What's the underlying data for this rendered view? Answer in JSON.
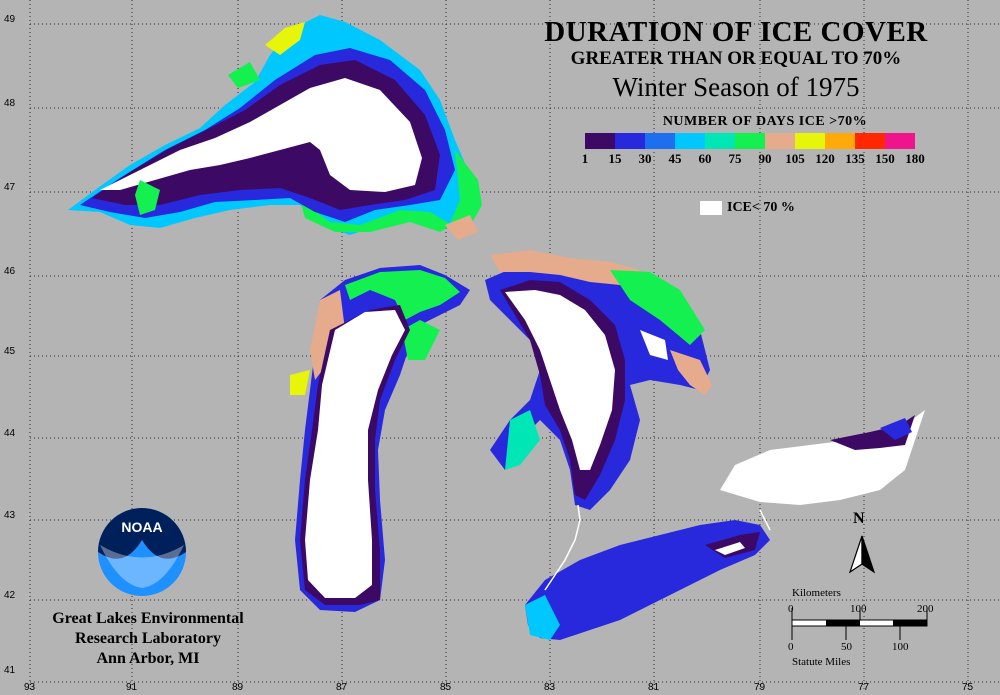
{
  "title": {
    "line1": "DURATION OF ICE COVER",
    "line2": "GREATER THAN OR EQUAL TO 70%",
    "line3": "Winter Season of 1975"
  },
  "legend": {
    "title": "NUMBER OF DAYS ICE >70%",
    "colors": [
      "#3c0a64",
      "#2828dc",
      "#1e6ef0",
      "#00c8ff",
      "#00e6b4",
      "#14f050",
      "#e6aa8c",
      "#e6f50a",
      "#ffaa0a",
      "#ff2800",
      "#f0148c"
    ],
    "ticks": [
      "1",
      "15",
      "30",
      "45",
      "60",
      "75",
      "90",
      "105",
      "120",
      "135",
      "150",
      "180"
    ],
    "ice_below_label": "ICE< 70 %"
  },
  "axes": {
    "lat_labels": [
      "49",
      "48",
      "47",
      "46",
      "45",
      "44",
      "43",
      "42",
      "41"
    ],
    "lon_labels": [
      "93",
      "91",
      "89",
      "87",
      "85",
      "83",
      "81",
      "79",
      "77",
      "75"
    ]
  },
  "north_arrow": {
    "label": "N"
  },
  "scale_bar": {
    "km_label": "Kilometers",
    "km_ticks": [
      "0",
      "100",
      "200"
    ],
    "mi_ticks": [
      "0",
      "50",
      "100"
    ],
    "mi_label": "Statute Miles"
  },
  "logo": {
    "text": "NOAA"
  },
  "organization": {
    "line1": "Great Lakes Environmental",
    "line2": "Research Laboratory",
    "line3": "Ann Arbor, MI"
  }
}
